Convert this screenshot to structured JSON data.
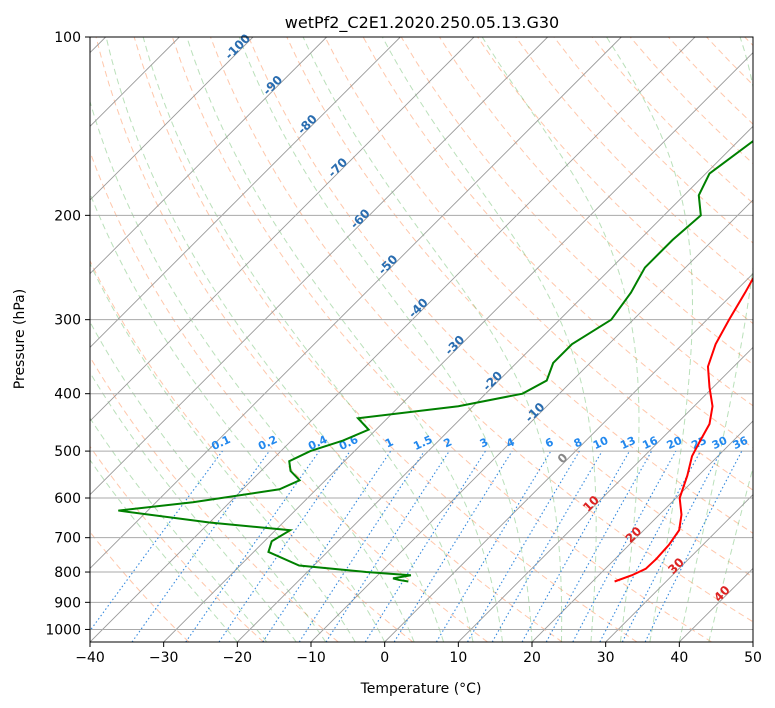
{
  "chart_data": {
    "type": "line",
    "title": "wetPf2_C2E1.2020.250.05.13.G30",
    "xlabel": "Temperature (°C)",
    "ylabel": "Pressure (hPa)",
    "xlim": [
      -40,
      50
    ],
    "ylim": [
      1050,
      100
    ],
    "y_scale": "log",
    "x_ticks": [
      -40,
      -30,
      -20,
      -10,
      0,
      10,
      20,
      30,
      40,
      50
    ],
    "y_ticks": [
      100,
      200,
      300,
      400,
      500,
      600,
      700,
      800,
      900,
      1000
    ],
    "grid": true,
    "skew_t": true,
    "series": [
      {
        "role": "temperature",
        "color": "#ff0000",
        "points": [
          [
            23.0,
            830
          ],
          [
            24.5,
            810
          ],
          [
            25.5,
            790
          ],
          [
            25.6,
            760
          ],
          [
            25.4,
            720
          ],
          [
            24.8,
            680
          ],
          [
            23.0,
            640
          ],
          [
            20.5,
            600
          ],
          [
            18.5,
            550
          ],
          [
            16.5,
            510
          ],
          [
            15.5,
            480
          ],
          [
            14.5,
            450
          ],
          [
            12.5,
            420
          ],
          [
            9.5,
            390
          ],
          [
            6.5,
            360
          ],
          [
            4.5,
            330
          ],
          [
            3.0,
            300
          ],
          [
            1.5,
            270
          ],
          [
            0.0,
            245
          ],
          [
            -2.0,
            220
          ],
          [
            -5.0,
            200
          ],
          [
            -7.5,
            175
          ],
          [
            -10.0,
            150
          ],
          [
            -12.0,
            135
          ],
          [
            -10.0,
            125
          ],
          [
            -6.5,
            115
          ],
          [
            -3.5,
            108
          ],
          [
            -1.5,
            100
          ]
        ]
      },
      {
        "role": "dewpoint",
        "color": "#008000",
        "points": [
          [
            -5.0,
            830
          ],
          [
            -6.5,
            825
          ],
          [
            -7.5,
            820
          ],
          [
            -5.5,
            810
          ],
          [
            -12.0,
            800
          ],
          [
            -22.0,
            780
          ],
          [
            -28.0,
            740
          ],
          [
            -29.0,
            710
          ],
          [
            -28.0,
            680
          ],
          [
            -40.0,
            660
          ],
          [
            -54.0,
            630
          ],
          [
            -45.0,
            610
          ],
          [
            -35.0,
            580
          ],
          [
            -33.5,
            560
          ],
          [
            -36.0,
            540
          ],
          [
            -37.5,
            520
          ],
          [
            -36.0,
            500
          ],
          [
            -33.0,
            480
          ],
          [
            -31.0,
            460
          ],
          [
            -34.0,
            440
          ],
          [
            -22.0,
            420
          ],
          [
            -15.0,
            400
          ],
          [
            -13.5,
            380
          ],
          [
            -15.0,
            355
          ],
          [
            -15.0,
            330
          ],
          [
            -13.0,
            300
          ],
          [
            -14.0,
            270
          ],
          [
            -15.5,
            245
          ],
          [
            -15.5,
            220
          ],
          [
            -15.0,
            200
          ],
          [
            -18.0,
            185
          ],
          [
            -19.5,
            170
          ],
          [
            -18.0,
            150
          ],
          [
            -14.0,
            130
          ],
          [
            -11.0,
            115
          ],
          [
            -9.5,
            105
          ],
          [
            -8.0,
            100
          ]
        ]
      }
    ],
    "dry_adiabat_labels": [
      "-100",
      "-90",
      "-80",
      "-70",
      "-60",
      "-50",
      "-40",
      "-30",
      "-20",
      "-10",
      "0",
      "10",
      "20",
      "30",
      "40"
    ],
    "mixing_ratio_labels": [
      "0.1",
      "0.2",
      "0.4",
      "0.6",
      "1",
      "1.5",
      "2",
      "3",
      "4",
      "6",
      "8",
      "10",
      "13",
      "16",
      "20",
      "25",
      "30",
      "36"
    ]
  }
}
